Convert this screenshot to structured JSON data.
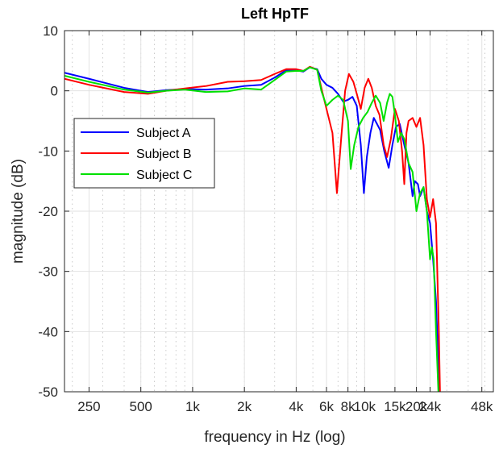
{
  "chart_data": {
    "type": "line",
    "title": "Left HpTF",
    "xlabel": "frequency in Hz (log)",
    "ylabel": "magnitude (dB)",
    "xscale": "log",
    "xlim": [
      180,
      56000
    ],
    "ylim": [
      -50,
      10
    ],
    "grid": true,
    "minor_grid": true,
    "legend_position": "left-middle",
    "xticks": [
      {
        "value": 250,
        "label": "250"
      },
      {
        "value": 500,
        "label": "500"
      },
      {
        "value": 1000,
        "label": "1k"
      },
      {
        "value": 2000,
        "label": "2k"
      },
      {
        "value": 4000,
        "label": "4k"
      },
      {
        "value": 6000,
        "label": "6k"
      },
      {
        "value": 8000,
        "label": "8k"
      },
      {
        "value": 10000,
        "label": "10k"
      },
      {
        "value": 15000,
        "label": "15k"
      },
      {
        "value": 20000,
        "label": "20k"
      },
      {
        "value": 24000,
        "label": "24k"
      },
      {
        "value": 48000,
        "label": "48k"
      }
    ],
    "yticks": [
      {
        "value": 10,
        "label": "10"
      },
      {
        "value": 0,
        "label": "0"
      },
      {
        "value": -10,
        "label": "-10"
      },
      {
        "value": -20,
        "label": "-20"
      },
      {
        "value": -30,
        "label": "-30"
      },
      {
        "value": -40,
        "label": "-40"
      },
      {
        "value": -50,
        "label": "-50"
      }
    ],
    "series": [
      {
        "name": "Subject A",
        "color": "#0000ff",
        "points": [
          [
            180,
            3.0
          ],
          [
            250,
            2.0
          ],
          [
            400,
            0.5
          ],
          [
            550,
            -0.2
          ],
          [
            700,
            0.1
          ],
          [
            900,
            0.3
          ],
          [
            1200,
            0.2
          ],
          [
            1600,
            0.4
          ],
          [
            2000,
            0.8
          ],
          [
            2500,
            1.0
          ],
          [
            3000,
            2.2
          ],
          [
            3500,
            3.4
          ],
          [
            4000,
            3.4
          ],
          [
            4400,
            3.2
          ],
          [
            4800,
            3.9
          ],
          [
            5300,
            3.6
          ],
          [
            5600,
            2.0
          ],
          [
            6000,
            1.0
          ],
          [
            6500,
            0.5
          ],
          [
            7000,
            -0.5
          ],
          [
            7500,
            -1.8
          ],
          [
            8000,
            -1.5
          ],
          [
            8500,
            -1.0
          ],
          [
            9000,
            -2.5
          ],
          [
            9500,
            -9.0
          ],
          [
            9900,
            -17.0
          ],
          [
            10300,
            -11.0
          ],
          [
            10800,
            -7.0
          ],
          [
            11300,
            -4.5
          ],
          [
            11800,
            -5.5
          ],
          [
            12300,
            -6.5
          ],
          [
            13000,
            -10.0
          ],
          [
            13800,
            -12.8
          ],
          [
            14500,
            -9.0
          ],
          [
            15200,
            -6.0
          ],
          [
            16000,
            -5.5
          ],
          [
            17000,
            -9.0
          ],
          [
            18000,
            -12.0
          ],
          [
            19000,
            -17.5
          ],
          [
            19600,
            -15.0
          ],
          [
            20400,
            -15.5
          ],
          [
            21000,
            -17.5
          ],
          [
            22000,
            -16.0
          ],
          [
            23000,
            -20.0
          ],
          [
            24000,
            -22.0
          ],
          [
            25000,
            -28.0
          ],
          [
            26000,
            -35.0
          ],
          [
            27000,
            -48.0
          ],
          [
            27500,
            -52.0
          ]
        ]
      },
      {
        "name": "Subject B",
        "color": "#ff0000",
        "points": [
          [
            180,
            2.0
          ],
          [
            250,
            1.0
          ],
          [
            400,
            -0.2
          ],
          [
            550,
            -0.5
          ],
          [
            700,
            0.0
          ],
          [
            900,
            0.4
          ],
          [
            1200,
            0.8
          ],
          [
            1600,
            1.5
          ],
          [
            2000,
            1.6
          ],
          [
            2500,
            1.8
          ],
          [
            3000,
            2.8
          ],
          [
            3500,
            3.6
          ],
          [
            4000,
            3.6
          ],
          [
            4400,
            3.3
          ],
          [
            4800,
            4.0
          ],
          [
            5300,
            3.5
          ],
          [
            5600,
            0.5
          ],
          [
            6000,
            -3.0
          ],
          [
            6500,
            -7.0
          ],
          [
            6900,
            -17.0
          ],
          [
            7300,
            -8.0
          ],
          [
            7700,
            0.0
          ],
          [
            8100,
            2.8
          ],
          [
            8600,
            1.5
          ],
          [
            9000,
            -0.5
          ],
          [
            9500,
            -3.0
          ],
          [
            10000,
            0.5
          ],
          [
            10500,
            2.0
          ],
          [
            11000,
            0.5
          ],
          [
            11600,
            -2.5
          ],
          [
            12200,
            -4.0
          ],
          [
            12900,
            -9.0
          ],
          [
            13500,
            -11.0
          ],
          [
            14200,
            -8.0
          ],
          [
            15000,
            -3.0
          ],
          [
            15800,
            -5.0
          ],
          [
            16500,
            -10.0
          ],
          [
            17000,
            -15.5
          ],
          [
            17500,
            -7.0
          ],
          [
            18000,
            -5.0
          ],
          [
            19000,
            -4.5
          ],
          [
            20000,
            -6.0
          ],
          [
            21000,
            -4.5
          ],
          [
            22000,
            -9.0
          ],
          [
            23000,
            -18.0
          ],
          [
            24000,
            -21.0
          ],
          [
            25000,
            -18.0
          ],
          [
            26000,
            -22.0
          ],
          [
            27000,
            -40.0
          ],
          [
            27500,
            -52.0
          ]
        ]
      },
      {
        "name": "Subject C",
        "color": "#00e000",
        "points": [
          [
            180,
            2.5
          ],
          [
            250,
            1.5
          ],
          [
            400,
            0.2
          ],
          [
            550,
            -0.3
          ],
          [
            700,
            0.0
          ],
          [
            900,
            0.2
          ],
          [
            1200,
            -0.2
          ],
          [
            1600,
            -0.1
          ],
          [
            2000,
            0.4
          ],
          [
            2500,
            0.2
          ],
          [
            3000,
            1.8
          ],
          [
            3500,
            3.2
          ],
          [
            4000,
            3.3
          ],
          [
            4400,
            3.3
          ],
          [
            4800,
            3.9
          ],
          [
            5300,
            3.5
          ],
          [
            5600,
            0.0
          ],
          [
            6000,
            -2.5
          ],
          [
            6500,
            -1.5
          ],
          [
            7000,
            -0.8
          ],
          [
            7500,
            -1.5
          ],
          [
            8000,
            -5.0
          ],
          [
            8300,
            -13.0
          ],
          [
            8700,
            -9.0
          ],
          [
            9200,
            -6.0
          ],
          [
            9800,
            -4.5
          ],
          [
            10400,
            -3.5
          ],
          [
            11000,
            -2.0
          ],
          [
            11600,
            -0.8
          ],
          [
            12300,
            -2.0
          ],
          [
            12900,
            -5.0
          ],
          [
            13500,
            -2.0
          ],
          [
            14000,
            -0.5
          ],
          [
            14500,
            -1.0
          ],
          [
            15000,
            -4.0
          ],
          [
            15600,
            -8.5
          ],
          [
            16300,
            -7.0
          ],
          [
            17000,
            -8.0
          ],
          [
            18000,
            -12.0
          ],
          [
            19000,
            -13.5
          ],
          [
            20000,
            -20.0
          ],
          [
            21000,
            -17.0
          ],
          [
            22000,
            -16.0
          ],
          [
            23000,
            -20.0
          ],
          [
            24000,
            -28.0
          ],
          [
            24600,
            -26.0
          ],
          [
            25200,
            -28.0
          ],
          [
            26000,
            -40.0
          ],
          [
            27000,
            -52.0
          ]
        ]
      }
    ]
  }
}
